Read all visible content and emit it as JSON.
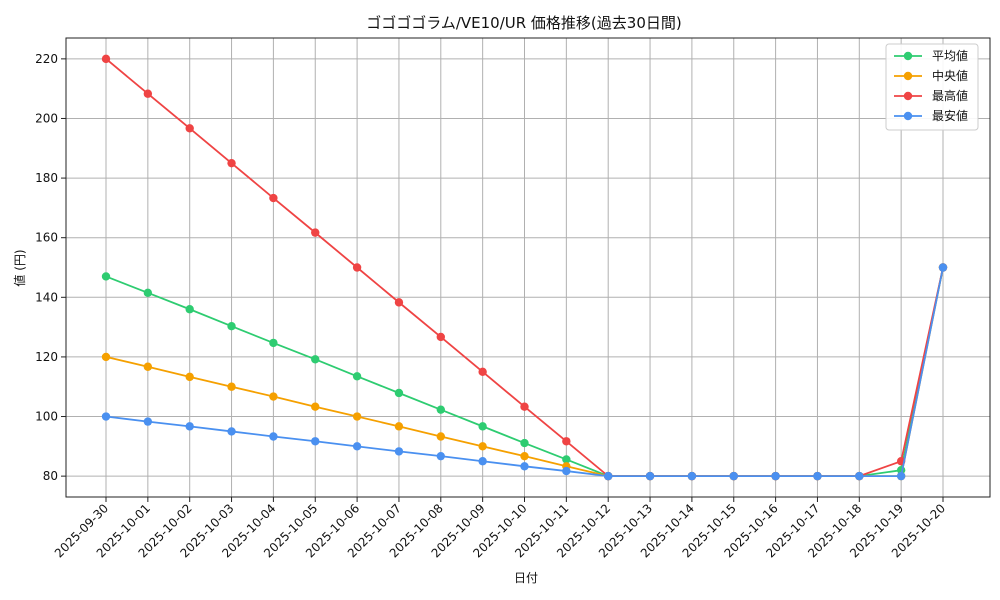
{
  "chart_data": {
    "type": "line",
    "title": "ゴゴゴゴラム/VE10/UR 価格推移(過去30日間)",
    "xlabel": "日付",
    "ylabel": "値 (円)",
    "ylim": [
      73,
      227
    ],
    "yticks": [
      80,
      100,
      120,
      140,
      160,
      180,
      200,
      220
    ],
    "grid": true,
    "legend_position": "top-right",
    "categories": [
      "2025-09-30",
      "2025-10-01",
      "2025-10-02",
      "2025-10-03",
      "2025-10-04",
      "2025-10-05",
      "2025-10-06",
      "2025-10-07",
      "2025-10-08",
      "2025-10-09",
      "2025-10-10",
      "2025-10-11",
      "2025-10-12",
      "2025-10-13",
      "2025-10-14",
      "2025-10-15",
      "2025-10-16",
      "2025-10-17",
      "2025-10-18",
      "2025-10-19",
      "2025-10-20"
    ],
    "series": [
      {
        "name": "平均値",
        "color": "#2ecc71",
        "values": [
          147,
          141.5,
          136,
          130.3,
          124.7,
          119.2,
          113.5,
          107.9,
          102.3,
          96.7,
          91.1,
          85.6,
          80,
          80,
          80,
          80,
          80,
          80,
          80,
          82,
          150
        ]
      },
      {
        "name": "中央値",
        "color": "#f5a000",
        "values": [
          120,
          116.7,
          113.3,
          110,
          106.7,
          103.3,
          100,
          96.7,
          93.3,
          90,
          86.7,
          83.3,
          80,
          80,
          80,
          80,
          80,
          80,
          80,
          80,
          150
        ]
      },
      {
        "name": "最高値",
        "color": "#ef4444",
        "values": [
          220,
          208.3,
          196.7,
          185,
          173.3,
          161.7,
          150,
          138.3,
          126.7,
          115,
          103.3,
          91.7,
          80,
          80,
          80,
          80,
          80,
          80,
          80,
          85,
          150
        ]
      },
      {
        "name": "最安値",
        "color": "#4a90f0",
        "values": [
          100,
          98.3,
          96.7,
          95,
          93.3,
          91.7,
          90,
          88.3,
          86.7,
          85,
          83.3,
          81.7,
          80,
          80,
          80,
          80,
          80,
          80,
          80,
          80,
          150
        ]
      }
    ]
  }
}
